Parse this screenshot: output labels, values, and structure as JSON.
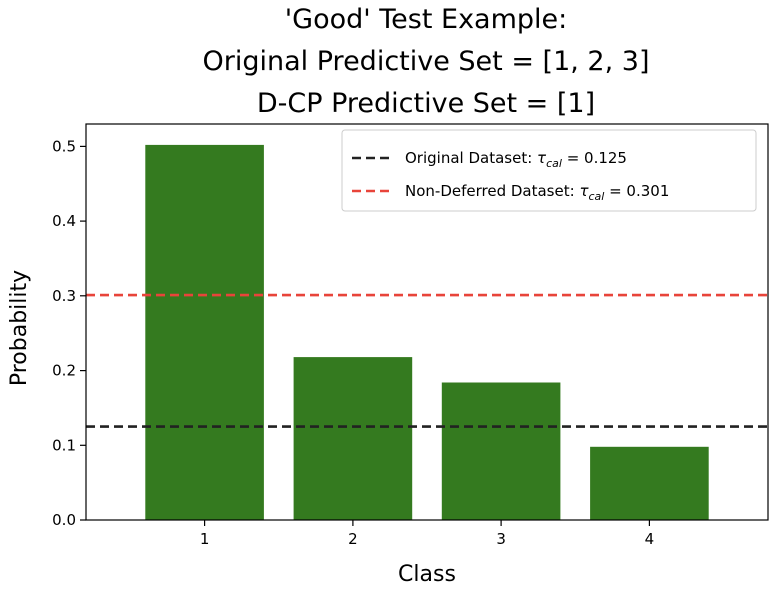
{
  "chart_data": {
    "type": "bar",
    "title_lines": [
      "'Good' Test Example:",
      "Original Predictive Set = [1, 2, 3]",
      "D-CP Predictive Set = [1]"
    ],
    "xlabel": "Class",
    "ylabel": "Probability",
    "categories": [
      "1",
      "2",
      "3",
      "4"
    ],
    "values": [
      0.502,
      0.218,
      0.184,
      0.098
    ],
    "ylim": [
      0,
      0.53
    ],
    "yticks": [
      0.0,
      0.1,
      0.2,
      0.3,
      0.4,
      0.5
    ],
    "ytick_labels": [
      "0.0",
      "0.1",
      "0.2",
      "0.3",
      "0.4",
      "0.5"
    ],
    "bar_color": "#347a1f",
    "grid": false,
    "legend_position": "top-right",
    "reference_lines": [
      {
        "label_prefix": "Original Dataset: ",
        "label_tau": "τ",
        "label_sub": "cal",
        "label_suffix": " = 0.125",
        "value": 0.125,
        "color": "#222222",
        "style": "dashed"
      },
      {
        "label_prefix": "Non-Deferred Dataset: ",
        "label_tau": "τ",
        "label_sub": "cal",
        "label_suffix": " = 0.301",
        "value": 0.301,
        "color": "#e8443a",
        "style": "dashed"
      }
    ]
  }
}
